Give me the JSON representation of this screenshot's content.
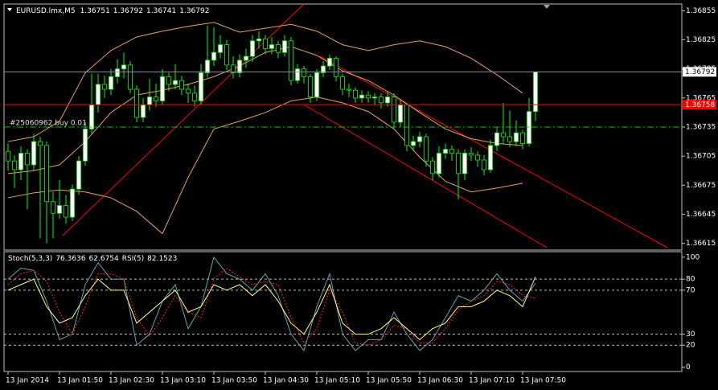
{
  "chart_data": [
    {
      "type": "candlestick",
      "title": "EURUSD.lmx,M5",
      "categories": [
        "13 Jan 2014",
        null,
        null,
        null,
        null,
        null,
        null,
        null,
        "13 Jan 01:50",
        null,
        null,
        null,
        null,
        null,
        null,
        null,
        "13 Jan 02:30",
        null,
        null,
        null,
        null,
        null,
        null,
        null,
        "13 Jan 03:10",
        null,
        null,
        null,
        null,
        null,
        null,
        null,
        "13 Jan 03:50",
        null,
        null,
        null,
        null,
        null,
        null,
        null,
        "13 Jan 04:30",
        null,
        null,
        null,
        null,
        null,
        null,
        null,
        "13 Jan 05:10",
        null,
        null,
        null,
        null,
        null,
        null,
        null,
        "13 Jan 05:50",
        null,
        null,
        null,
        null,
        null,
        null,
        null,
        "13 Jan 06:30",
        null,
        null,
        null,
        null,
        null,
        null,
        null,
        "13 Jan 07:10",
        null,
        null,
        null,
        null,
        null,
        null,
        null,
        "13 Jan 07:50",
        null,
        null
      ],
      "open": [
        1.3671,
        1.367,
        1.36691,
        1.36708,
        1.36696,
        1.3672,
        1.36716,
        1.36658,
        1.36646,
        1.36654,
        1.36642,
        1.36671,
        1.367,
        1.36733,
        1.36758,
        1.36779,
        1.36774,
        1.36787,
        1.36795,
        1.36799,
        1.36774,
        1.36745,
        1.36758,
        1.36766,
        1.36762,
        1.36787,
        1.36779,
        1.36783,
        1.36774,
        1.3677,
        1.36762,
        1.36791,
        1.36804,
        1.36812,
        1.3682,
        1.36799,
        1.36791,
        1.36804,
        1.36808,
        1.36824,
        1.36826,
        1.36816,
        1.3682,
        1.36812,
        1.36824,
        1.36783,
        1.36795,
        1.36787,
        1.36766,
        1.36791,
        1.36798,
        1.36806,
        1.36787,
        1.36774,
        1.36773,
        1.36765,
        1.36768,
        1.36765,
        1.36766,
        1.3676,
        1.36766,
        1.3674,
        1.36758,
        1.36716,
        1.3672,
        1.36725,
        1.367,
        1.36687,
        1.36708,
        1.36712,
        1.36708,
        1.36687,
        1.36708,
        1.36706,
        1.36701,
        1.36691,
        1.36716,
        1.36729,
        1.36725,
        1.3672,
        1.36729,
        1.36718,
        1.36751
      ],
      "high": [
        1.36718,
        1.36706,
        1.36715,
        1.36712,
        1.36728,
        1.36725,
        1.3672,
        1.36668,
        1.3668,
        1.36665,
        1.36676,
        1.36705,
        1.3674,
        1.3679,
        1.3679,
        1.36788,
        1.36795,
        1.36805,
        1.36812,
        1.36803,
        1.36778,
        1.36765,
        1.36785,
        1.3678,
        1.36795,
        1.36791,
        1.368,
        1.36788,
        1.3678,
        1.36778,
        1.368,
        1.3684,
        1.36838,
        1.3683,
        1.36825,
        1.36808,
        1.3681,
        1.36816,
        1.3683,
        1.36834,
        1.3683,
        1.36828,
        1.36824,
        1.3683,
        1.36828,
        1.368,
        1.36798,
        1.3679,
        1.36795,
        1.36803,
        1.3681,
        1.36808,
        1.3679,
        1.3678,
        1.36776,
        1.36773,
        1.36772,
        1.3677,
        1.3677,
        1.36772,
        1.3677,
        1.36763,
        1.3676,
        1.36726,
        1.3673,
        1.36728,
        1.36704,
        1.36715,
        1.36718,
        1.36716,
        1.36712,
        1.36712,
        1.36714,
        1.3671,
        1.36706,
        1.36722,
        1.36735,
        1.3676,
        1.36752,
        1.36742,
        1.36732,
        1.36765,
        1.36792
      ],
      "low": [
        1.3669,
        1.36672,
        1.3668,
        1.3665,
        1.3669,
        1.3662,
        1.36615,
        1.3662,
        1.3664,
        1.36635,
        1.36638,
        1.36665,
        1.36695,
        1.36728,
        1.3675,
        1.36765,
        1.36768,
        1.3678,
        1.36785,
        1.3677,
        1.3674,
        1.3674,
        1.36752,
        1.36756,
        1.36758,
        1.36772,
        1.36774,
        1.36768,
        1.3676,
        1.36756,
        1.36758,
        1.36786,
        1.36798,
        1.36806,
        1.36794,
        1.36785,
        1.36786,
        1.36796,
        1.36802,
        1.36816,
        1.3681,
        1.3681,
        1.36806,
        1.36808,
        1.36778,
        1.3678,
        1.3678,
        1.3676,
        1.36762,
        1.36786,
        1.36794,
        1.36782,
        1.36768,
        1.36766,
        1.3676,
        1.3676,
        1.3676,
        1.36758,
        1.36754,
        1.36756,
        1.36734,
        1.36735,
        1.3671,
        1.3671,
        1.36714,
        1.36694,
        1.3668,
        1.36683,
        1.36702,
        1.367,
        1.3666,
        1.3668,
        1.367,
        1.36694,
        1.36685,
        1.36688,
        1.3671,
        1.36718,
        1.36714,
        1.36715,
        1.36712,
        1.36715,
        1.36741
      ],
      "close": [
        1.367,
        1.36691,
        1.36708,
        1.36696,
        1.3672,
        1.36716,
        1.36658,
        1.36646,
        1.36654,
        1.36642,
        1.36671,
        1.367,
        1.36733,
        1.36758,
        1.36779,
        1.36774,
        1.36787,
        1.36795,
        1.36799,
        1.36774,
        1.36745,
        1.36758,
        1.36766,
        1.36762,
        1.36787,
        1.36779,
        1.36783,
        1.36774,
        1.3677,
        1.36762,
        1.36791,
        1.36804,
        1.36812,
        1.3682,
        1.36799,
        1.36791,
        1.36804,
        1.36808,
        1.36824,
        1.36826,
        1.36816,
        1.3682,
        1.36812,
        1.36824,
        1.36783,
        1.36795,
        1.36787,
        1.36766,
        1.36791,
        1.36798,
        1.36806,
        1.36787,
        1.36774,
        1.36773,
        1.36765,
        1.36768,
        1.36765,
        1.36766,
        1.3676,
        1.36766,
        1.3674,
        1.36758,
        1.36716,
        1.3672,
        1.36725,
        1.367,
        1.36687,
        1.36708,
        1.36712,
        1.36708,
        1.36687,
        1.36708,
        1.36706,
        1.36701,
        1.36691,
        1.36716,
        1.36729,
        1.36725,
        1.3672,
        1.36729,
        1.36718,
        1.36751,
        1.36792
      ],
      "up_color": "#ffffff",
      "down_color": "#000000",
      "wick_color": "#00ff00",
      "bollinger": {
        "color": "#e8a060",
        "upper": [
          1.3672,
          1.36725,
          1.36741,
          1.36791,
          1.36814,
          1.36828,
          1.36834,
          1.36839,
          1.36843,
          1.36833,
          1.36837,
          1.36841,
          1.36834,
          1.3682,
          1.36814,
          1.3682,
          1.36824,
          1.36818,
          1.36806,
          1.36789,
          1.3677
        ],
        "middle": [
          1.36687,
          1.3669,
          1.36696,
          1.3672,
          1.3675,
          1.36768,
          1.36773,
          1.36779,
          1.36787,
          1.36798,
          1.36812,
          1.36818,
          1.36809,
          1.36793,
          1.36783,
          1.36768,
          1.3675,
          1.36733,
          1.36723,
          1.36718,
          1.36716
        ],
        "lower": [
          1.36662,
          1.36667,
          1.3667,
          1.36668,
          1.36662,
          1.36648,
          1.36625,
          1.36683,
          1.36733,
          1.36741,
          1.3675,
          1.36762,
          1.36766,
          1.3676,
          1.36751,
          1.36733,
          1.36704,
          1.36679,
          1.36668,
          1.36672,
          1.36677
        ]
      },
      "levels": [
        {
          "value": 1.36792,
          "color": "#9090a8",
          "box": "#ffffff",
          "text_color": "#000000"
        },
        {
          "value": 1.36758,
          "color": "#ff0000",
          "box": "#ff0000",
          "text_color": "#ffffff"
        }
      ],
      "order": {
        "label": "#25060962 buy 0.01",
        "value": 1.36735,
        "color": "#00c000"
      },
      "ylim": [
        1.36608,
        1.36862
      ],
      "yticks": [
        1.36615,
        1.36645,
        1.36675,
        1.36705,
        1.36735,
        1.36765,
        1.36795,
        1.36825,
        1.36855
      ]
    },
    {
      "type": "line",
      "title": "Stoch(5,3,3)",
      "rsi_title": "RSI(5)",
      "series": [
        {
          "color": "#5fa8b0",
          "dash": false,
          "values": [
            80,
            90,
            88,
            60,
            25,
            30,
            75,
            95,
            80,
            80,
            20,
            30,
            60,
            75,
            35,
            55,
            100,
            85,
            80,
            70,
            85,
            65,
            30,
            15,
            55,
            85,
            30,
            15,
            25,
            25,
            50,
            30,
            15,
            25,
            45,
            65,
            60,
            70,
            85,
            70,
            60,
            76.3636
          ]
        },
        {
          "color": "#ff2020",
          "dash": true,
          "values": [
            75,
            85,
            88,
            78,
            50,
            30,
            55,
            85,
            85,
            80,
            45,
            28,
            45,
            65,
            50,
            45,
            80,
            90,
            82,
            75,
            78,
            75,
            45,
            22,
            35,
            70,
            50,
            22,
            20,
            25,
            38,
            35,
            22,
            22,
            35,
            52,
            60,
            65,
            78,
            75,
            65,
            62.6754
          ]
        },
        {
          "color": "#ffff80",
          "dash": false,
          "values": [
            70,
            75,
            80,
            55,
            40,
            45,
            65,
            80,
            70,
            70,
            40,
            50,
            60,
            70,
            50,
            55,
            75,
            70,
            75,
            65,
            75,
            60,
            40,
            30,
            50,
            75,
            40,
            30,
            30,
            35,
            45,
            35,
            25,
            35,
            40,
            55,
            55,
            60,
            70,
            65,
            55,
            82.1523
          ]
        }
      ],
      "levels": [
        20,
        30,
        70,
        80
      ],
      "ylim": [
        -4,
        105
      ],
      "yticks": [
        0,
        20,
        30,
        70,
        80,
        100
      ]
    }
  ]
}
